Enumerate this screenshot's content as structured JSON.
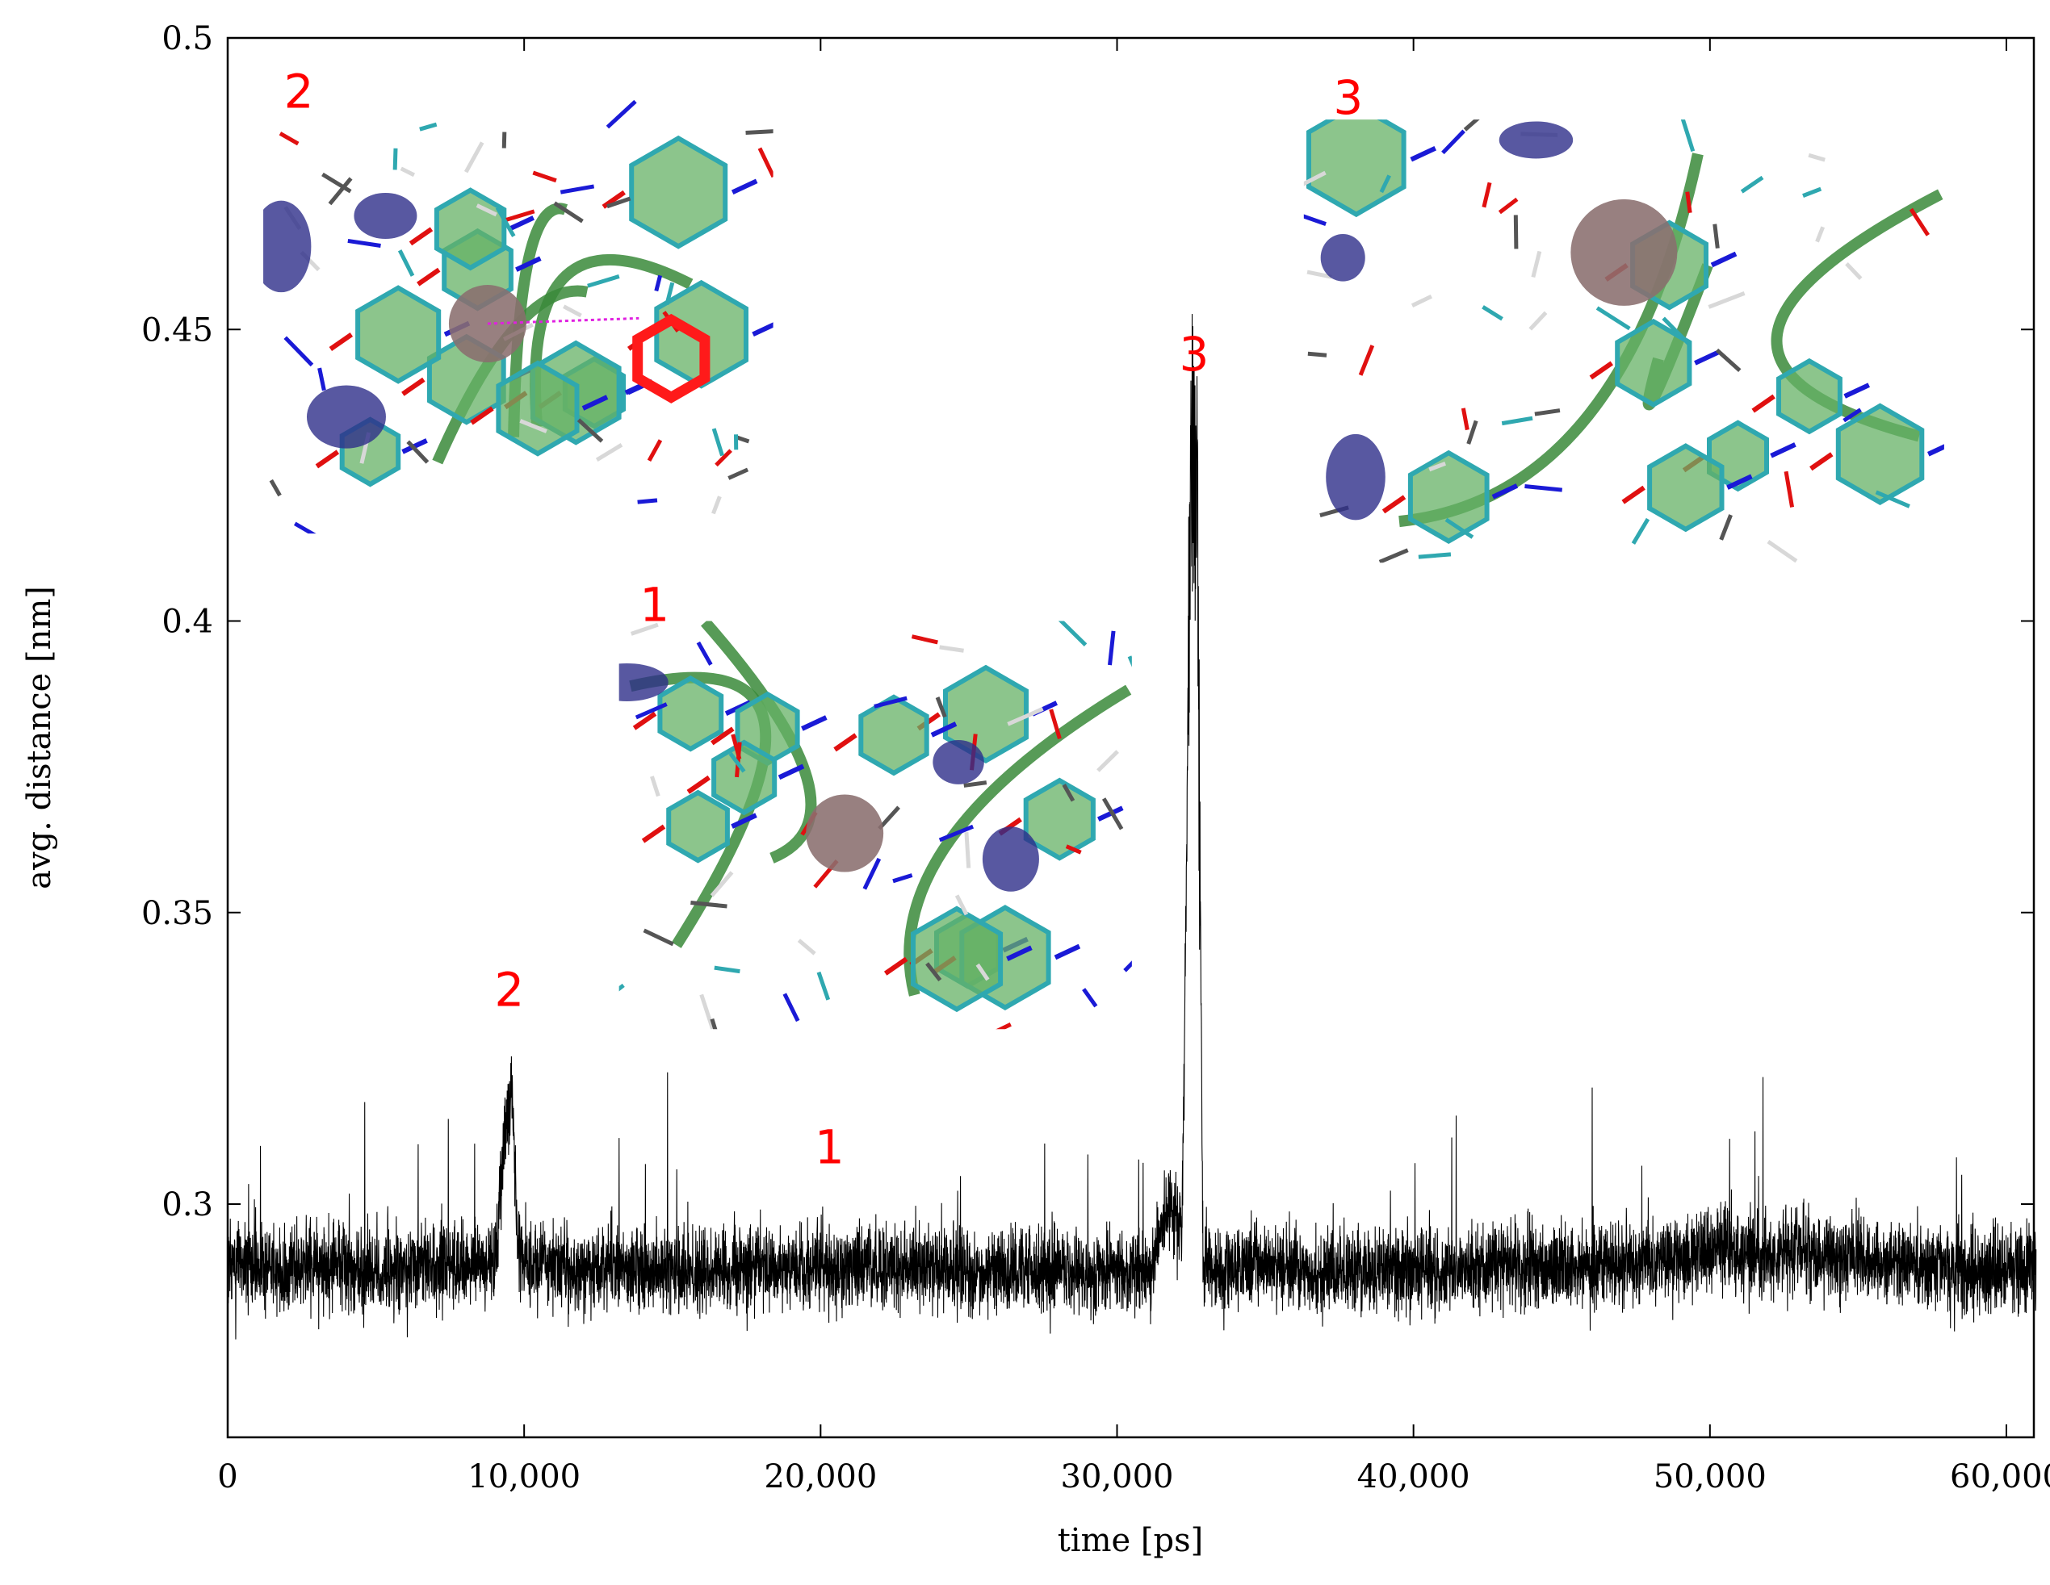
{
  "chart_data": {
    "type": "line",
    "title": "",
    "xlabel": "time [ps]",
    "ylabel": "avg. distance [nm]",
    "xlim": [
      0,
      61500
    ],
    "ylim": [
      0.26,
      0.5
    ],
    "x_ticks": [
      0,
      10000,
      20000,
      30000,
      40000,
      50000,
      60000
    ],
    "x_tick_labels": [
      "0",
      "10,000",
      "20,000",
      "30,000",
      "40,000",
      "50,000",
      "60,000"
    ],
    "y_ticks": [
      0.3,
      0.35,
      0.4,
      0.45,
      0.5
    ],
    "y_tick_labels": [
      "0.3",
      "0.35",
      "0.4",
      "0.45",
      "0.5"
    ],
    "grid": false,
    "legend": "none",
    "series_color": "#000000",
    "series": [
      {
        "x": [
          0,
          1000,
          2000,
          3000,
          4000,
          5000,
          6000,
          7000,
          8000,
          9000,
          9400,
          9600,
          9800,
          10000,
          11000,
          12000,
          13000,
          14000,
          15000,
          16000,
          17000,
          18000,
          19000,
          20000,
          21000,
          22000,
          23000,
          24000,
          25000,
          26000,
          27000,
          28000,
          29000,
          30000,
          31000,
          31800,
          32200,
          32500,
          32700,
          32900,
          33200,
          34000,
          35000,
          36000,
          37000,
          38000,
          39000,
          40000,
          41000,
          42000,
          43000,
          44000,
          45000,
          46000,
          47000,
          48000,
          49000,
          50000,
          51000,
          52000,
          53000,
          54000,
          55000,
          56000,
          57000,
          58000,
          59000,
          60000,
          61000
        ],
        "y": [
          0.289,
          0.29,
          0.288,
          0.29,
          0.289,
          0.288,
          0.289,
          0.29,
          0.289,
          0.29,
          0.315,
          0.32,
          0.29,
          0.289,
          0.289,
          0.288,
          0.29,
          0.289,
          0.289,
          0.288,
          0.289,
          0.29,
          0.289,
          0.289,
          0.288,
          0.289,
          0.289,
          0.29,
          0.288,
          0.289,
          0.289,
          0.289,
          0.288,
          0.289,
          0.287,
          0.3,
          0.295,
          0.43,
          0.42,
          0.29,
          0.289,
          0.289,
          0.29,
          0.289,
          0.288,
          0.289,
          0.289,
          0.289,
          0.288,
          0.289,
          0.29,
          0.289,
          0.289,
          0.289,
          0.29,
          0.29,
          0.291,
          0.292,
          0.292,
          0.291,
          0.292,
          0.291,
          0.291,
          0.29,
          0.289,
          0.289,
          0.289,
          0.289,
          0.29
        ]
      }
    ],
    "annotations": [
      {
        "label": "2",
        "x": 9500,
        "y": 0.334
      },
      {
        "label": "1",
        "x": 20300,
        "y": 0.307
      },
      {
        "label": "3",
        "x": 32600,
        "y": 0.443
      },
      {
        "label": "2",
        "x": 2400,
        "y": 0.488
      },
      {
        "label": "1",
        "x": 14400,
        "y": 0.4
      },
      {
        "label": "3",
        "x": 37800,
        "y": 0.487
      }
    ]
  },
  "insets": [
    {
      "name": "molecular-snapshot-2",
      "tag": "2",
      "x0": 1200,
      "x1": 18400,
      "y0": 0.415,
      "y1": 0.49
    },
    {
      "name": "molecular-snapshot-1",
      "tag": "1",
      "x0": 13200,
      "x1": 30500,
      "y0": 0.33,
      "y1": 0.4
    },
    {
      "name": "molecular-snapshot-3",
      "tag": "3",
      "x0": 36300,
      "x1": 57900,
      "y0": 0.41,
      "y1": 0.486
    }
  ],
  "colors": {
    "annotation": "#ff0000",
    "ring_fill": "#66b266",
    "carbon": "#2fa8b0",
    "nitrogen": "#1a1ad6",
    "oxygen": "#e01010",
    "hydrogen": "#d8d8d8",
    "ion": "#8a6e6e",
    "density": "#2e2e8a",
    "ribbon": "#3a8a3a",
    "highlight": "#ff1a1a"
  }
}
